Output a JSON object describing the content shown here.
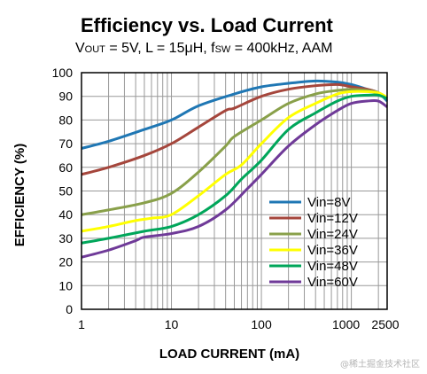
{
  "chart_data": {
    "type": "line",
    "title": "Efficiency vs. Load Current",
    "subtitle": {
      "v": "V",
      "v_sub": "OUT",
      "mid": " = 5V, L = 15μH, f",
      "f_sub": "SW",
      "end": " = 400kHz, AAM"
    },
    "xlabel": "LOAD CURRENT  (mA)",
    "ylabel": "EFFICIENCY  (%)",
    "x_scale": "log",
    "xlim": [
      1,
      2500
    ],
    "ylim": [
      0,
      100
    ],
    "x_ticks": [
      1,
      10,
      100,
      1000,
      2500
    ],
    "x_tick_labels": [
      "1",
      "10",
      "100",
      "1000",
      "2500"
    ],
    "y_ticks": [
      0,
      10,
      20,
      30,
      40,
      50,
      60,
      70,
      80,
      90,
      100
    ],
    "y_tick_labels": [
      "0",
      "10",
      "20",
      "30",
      "40",
      "50",
      "60",
      "70",
      "80",
      "90",
      "100"
    ],
    "grid": true,
    "legend_position": "bottom-right",
    "series": [
      {
        "name": "Vin=8V",
        "color": "#1f77b4",
        "x": [
          1,
          2,
          5,
          10,
          20,
          50,
          100,
          200,
          400,
          700,
          1000,
          1500,
          2000,
          2500
        ],
        "y": [
          68,
          71,
          76,
          80,
          86,
          91,
          94,
          95.5,
          96.5,
          96,
          95,
          93,
          91.5,
          88
        ]
      },
      {
        "name": "Vin=12V",
        "color": "#a5463c",
        "x": [
          1,
          2,
          5,
          10,
          20,
          40,
          50,
          100,
          200,
          400,
          700,
          1000,
          1500,
          2000,
          2500
        ],
        "y": [
          57,
          60,
          65,
          70,
          77,
          84,
          85,
          90,
          93,
          94.5,
          95,
          94,
          93,
          91.5,
          89
        ]
      },
      {
        "name": "Vin=24V",
        "color": "#89a04a",
        "x": [
          1,
          2,
          5,
          10,
          20,
          40,
          50,
          100,
          200,
          400,
          700,
          1000,
          1500,
          2000,
          2500
        ],
        "y": [
          40,
          42,
          45,
          49,
          58,
          69,
          73,
          80,
          87,
          91,
          92.5,
          93,
          92.5,
          91.5,
          89
        ]
      },
      {
        "name": "Vin=36V",
        "color": "#ffff00",
        "x": [
          1,
          2,
          4,
          6,
          10,
          20,
          40,
          60,
          100,
          200,
          400,
          700,
          1000,
          1500,
          2000,
          2500
        ],
        "y": [
          33,
          35,
          37.5,
          38.5,
          40,
          48,
          57,
          61,
          70,
          81,
          87,
          91,
          92,
          92,
          91.5,
          89.5
        ]
      },
      {
        "name": "Vin=48V",
        "color": "#00a65a",
        "x": [
          1,
          2,
          5,
          10,
          20,
          40,
          60,
          100,
          200,
          400,
          700,
          1000,
          1500,
          2000,
          2500
        ],
        "y": [
          28,
          30,
          33,
          35,
          40,
          48,
          55,
          63,
          76,
          83,
          88,
          90,
          90.5,
          90.5,
          89
        ]
      },
      {
        "name": "Vin=60V",
        "color": "#6f3a98",
        "x": [
          1,
          2,
          4,
          5,
          10,
          20,
          40,
          70,
          100,
          200,
          400,
          700,
          1000,
          1500,
          2000,
          2500
        ],
        "y": [
          22,
          25,
          29,
          30.5,
          32,
          35,
          42,
          51,
          57,
          69,
          78,
          84,
          87,
          88,
          88,
          85.5
        ]
      }
    ]
  },
  "watermark": "@稀土掘金技术社区"
}
